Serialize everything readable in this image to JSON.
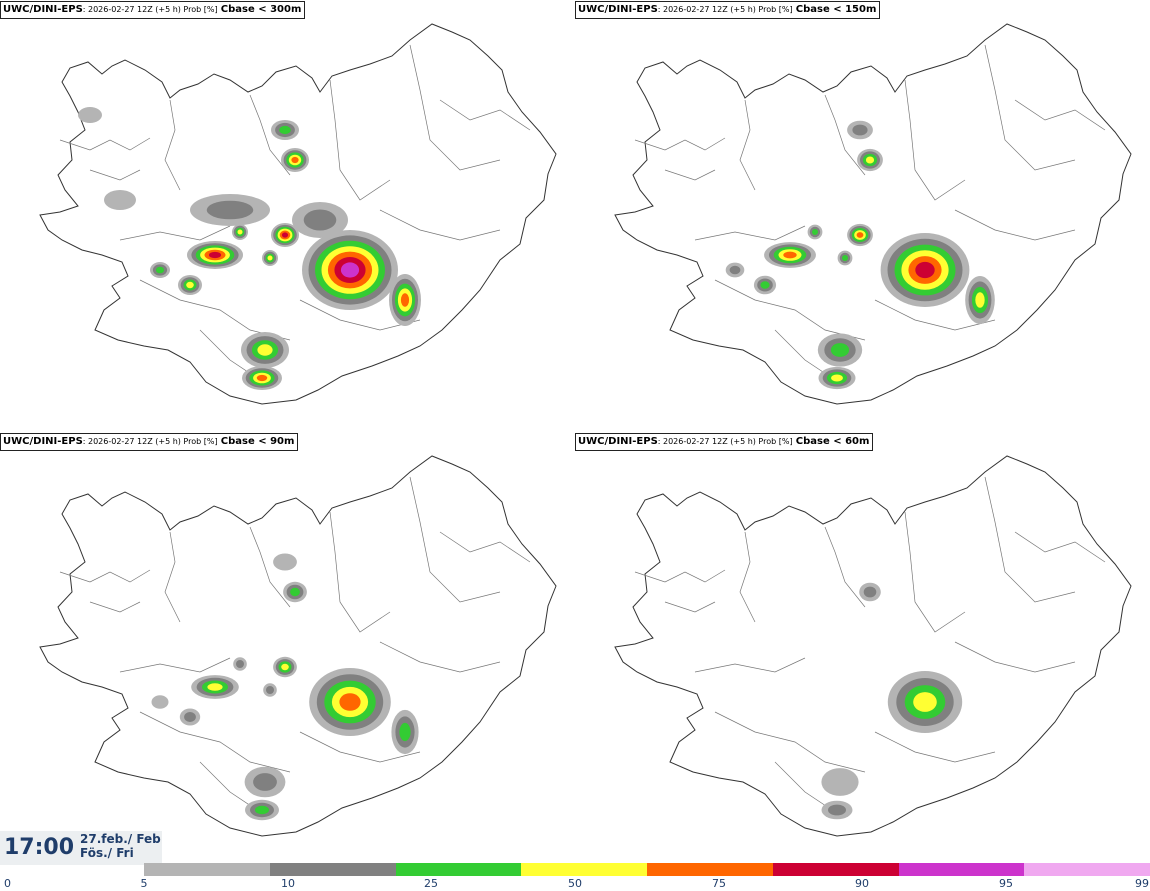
{
  "panels": [
    {
      "model": "UWC/DINI-EPS",
      "run": ": 2026-02-27 12Z (+5 h) Prob [%]",
      "threshold": "Cbase < 300m",
      "level": 4
    },
    {
      "model": "UWC/DINI-EPS",
      "run": ": 2026-02-27 12Z (+5 h) Prob [%]",
      "threshold": "Cbase < 150m",
      "level": 3
    },
    {
      "model": "UWC/DINI-EPS",
      "run": ": 2026-02-27 12Z (+5 h) Prob [%]",
      "threshold": "Cbase < 90m",
      "level": 2
    },
    {
      "model": "UWC/DINI-EPS",
      "run": ": 2026-02-27 12Z (+5 h) Prob [%]",
      "threshold": "Cbase < 60m",
      "level": 1
    }
  ],
  "timestamp": {
    "time": "17:00",
    "date_line1": "27.feb./ Feb",
    "date_line2": "Fös./ Fri"
  },
  "colorbar": {
    "ticks": [
      "0",
      "5",
      "10",
      "25",
      "50",
      "75",
      "90",
      "95",
      "99"
    ],
    "colors": [
      "#b4b4b4",
      "#808080",
      "#33cc33",
      "#ffff33",
      "#ff6600",
      "#cc0033",
      "#cc33cc",
      "#f0a8f0"
    ]
  }
}
